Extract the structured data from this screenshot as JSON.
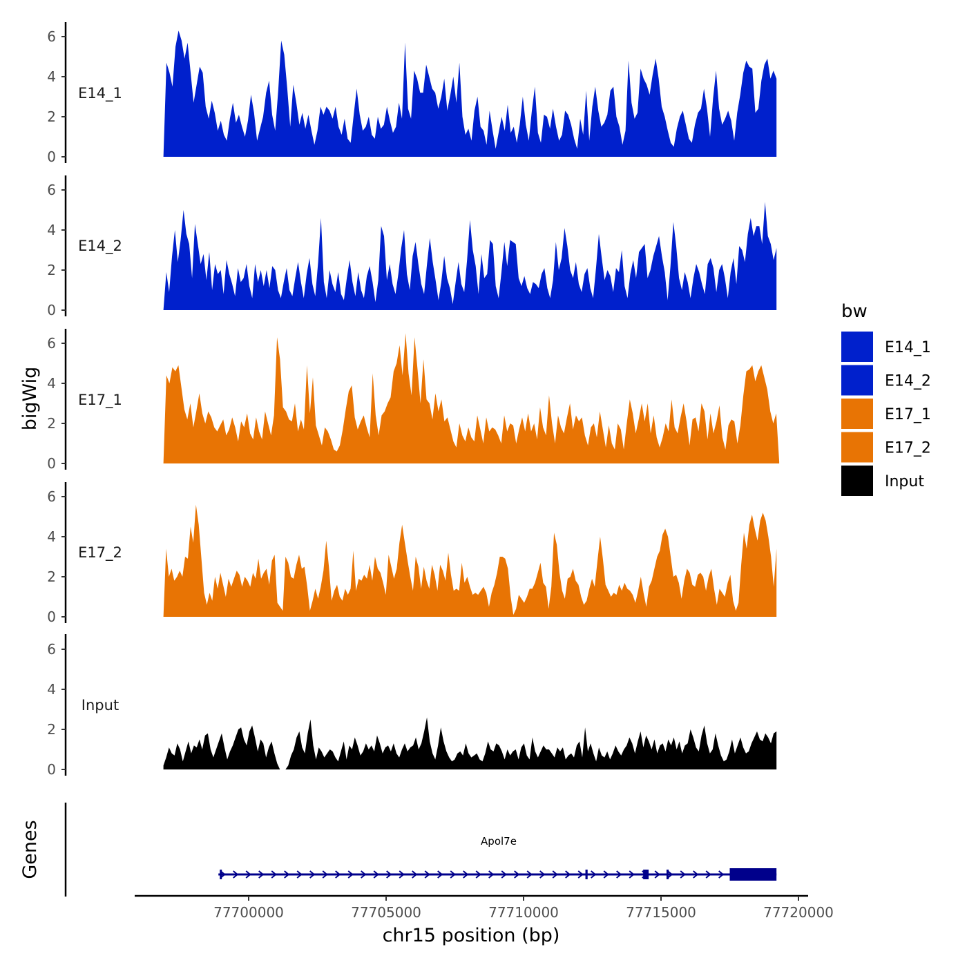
{
  "chart_data": {
    "type": "area",
    "ylabel": "bigWig",
    "xlabel": "chr15 position (bp)",
    "xlim": [
      77696700,
      77719300
    ],
    "ylim": [
      0,
      6.5
    ],
    "yticks": [
      0,
      2,
      4,
      6
    ],
    "xticks": [
      77700000,
      77705000,
      77710000,
      77715000,
      77720000
    ],
    "xtick_labels": [
      "77700000",
      "77705000",
      "77710000",
      "77715000",
      "77720000"
    ],
    "colors": {
      "E14_1": "#0020CC",
      "E14_2": "#0020CC",
      "E17_1": "#E87404",
      "E17_2": "#E87404",
      "Input": "#000000"
    },
    "legend": {
      "title": "bw",
      "entries": [
        "E14_1",
        "E14_2",
        "E17_1",
        "E17_2",
        "Input"
      ]
    },
    "series": [
      {
        "name": "E14_1",
        "x_start": 77696900,
        "x_end": 77719200,
        "values": [
          0.0,
          4.7,
          4.2,
          3.5,
          5.5,
          6.3,
          5.8,
          4.9,
          5.7,
          4.2,
          2.7,
          3.6,
          4.5,
          4.2,
          2.5,
          1.9,
          2.8,
          2.2,
          1.3,
          1.8,
          1.1,
          0.8,
          1.9,
          2.7,
          1.7,
          2.1,
          1.5,
          1.0,
          1.8,
          3.1,
          2.2,
          0.8,
          1.4,
          2.0,
          3.2,
          3.8,
          2.1,
          1.3,
          3.3,
          5.8,
          5.1,
          3.4,
          1.5,
          3.6,
          2.7,
          1.6,
          2.2,
          1.4,
          2.1,
          1.3,
          0.6,
          1.3,
          2.5,
          2.1,
          2.5,
          2.3,
          1.9,
          2.5,
          1.5,
          1.1,
          1.9,
          0.9,
          0.7,
          2.1,
          3.4,
          2.1,
          1.3,
          1.5,
          2.0,
          1.1,
          0.9,
          2.0,
          1.4,
          1.6,
          2.5,
          1.8,
          1.2,
          1.5,
          2.7,
          1.9,
          5.7,
          2.4,
          1.9,
          4.3,
          3.9,
          3.2,
          3.2,
          4.6,
          4.0,
          3.4,
          3.2,
          2.4,
          3.0,
          3.9,
          2.3,
          3.1,
          4.0,
          2.7,
          4.7,
          2.0,
          1.1,
          1.4,
          0.8,
          2.3,
          3.0,
          1.5,
          1.3,
          0.6,
          2.3,
          1.3,
          0.4,
          1.2,
          2.0,
          1.3,
          2.6,
          1.2,
          1.5,
          0.7,
          1.6,
          3.0,
          1.6,
          0.8,
          2.3,
          3.5,
          1.2,
          0.7,
          2.1,
          2.0,
          1.4,
          2.4,
          1.5,
          0.8,
          1.1,
          2.3,
          2.1,
          1.6,
          0.9,
          0.4,
          1.9,
          1.1,
          3.3,
          0.8,
          2.5,
          3.5,
          2.3,
          1.5,
          1.7,
          2.1,
          3.3,
          3.5,
          2.0,
          1.5,
          0.6,
          1.3,
          4.8,
          2.7,
          1.9,
          2.2,
          4.4,
          3.9,
          3.6,
          3.1,
          4.1,
          4.9,
          3.9,
          2.5,
          2.0,
          1.3,
          0.7,
          0.5,
          1.4,
          2.0,
          2.3,
          1.6,
          0.9,
          0.7,
          1.6,
          2.2,
          2.4,
          3.4,
          2.4,
          1.0,
          2.9,
          4.3,
          2.4,
          1.6,
          1.9,
          2.3,
          1.8,
          0.8,
          2.2,
          3.1,
          4.2,
          4.8,
          4.5,
          4.4,
          2.2,
          2.4,
          3.8,
          4.6,
          4.9,
          3.9,
          4.3,
          3.9
        ]
      },
      {
        "name": "E14_2",
        "x_start": 77696900,
        "x_end": 77719200,
        "values": [
          0.0,
          1.9,
          0.9,
          2.7,
          4.0,
          2.4,
          3.5,
          5.0,
          3.8,
          3.3,
          1.6,
          4.3,
          3.3,
          2.3,
          2.8,
          1.5,
          2.9,
          1.0,
          2.3,
          1.8,
          2.0,
          0.8,
          2.5,
          1.8,
          1.3,
          0.7,
          2.1,
          1.4,
          1.6,
          2.3,
          1.2,
          0.6,
          2.3,
          1.4,
          2.0,
          1.2,
          2.0,
          1.1,
          2.2,
          2.0,
          1.0,
          0.6,
          1.4,
          2.1,
          1.0,
          0.7,
          1.6,
          2.4,
          1.4,
          0.6,
          1.8,
          2.6,
          1.3,
          0.7,
          2.4,
          4.6,
          1.4,
          0.6,
          2.0,
          1.3,
          0.9,
          1.9,
          0.8,
          0.5,
          1.6,
          2.5,
          1.4,
          0.7,
          1.9,
          1.0,
          0.6,
          1.7,
          2.2,
          1.4,
          0.4,
          1.5,
          4.2,
          3.7,
          1.5,
          2.3,
          1.3,
          0.8,
          1.8,
          3.1,
          4.0,
          1.8,
          1.0,
          2.7,
          3.4,
          2.3,
          1.3,
          0.8,
          2.3,
          3.6,
          2.4,
          1.5,
          0.5,
          1.4,
          2.7,
          1.6,
          1.1,
          0.3,
          1.4,
          2.4,
          1.3,
          0.9,
          2.5,
          4.5,
          3.0,
          2.2,
          0.8,
          2.8,
          1.6,
          1.8,
          3.5,
          3.3,
          1.2,
          0.6,
          1.9,
          3.4,
          2.2,
          3.5,
          3.4,
          3.3,
          1.6,
          1.2,
          1.7,
          1.1,
          0.8,
          1.4,
          1.3,
          1.1,
          1.8,
          2.1,
          1.1,
          0.6,
          1.5,
          3.4,
          2.0,
          2.6,
          4.1,
          3.2,
          2.0,
          1.6,
          2.4,
          1.3,
          0.9,
          1.8,
          2.1,
          1.1,
          0.6,
          2.1,
          3.8,
          2.6,
          1.5,
          2.0,
          1.7,
          0.9,
          2.1,
          1.9,
          3.0,
          1.2,
          0.6,
          1.8,
          2.5,
          1.6,
          2.9,
          3.1,
          3.3,
          1.6,
          2.0,
          2.7,
          3.2,
          3.7,
          2.7,
          1.9,
          0.5,
          2.2,
          4.4,
          3.2,
          1.6,
          1.0,
          1.9,
          1.4,
          0.6,
          1.6,
          2.3,
          1.9,
          1.3,
          0.8,
          2.3,
          2.6,
          2.1,
          0.9,
          2.0,
          2.3,
          1.6,
          0.6,
          1.9,
          2.6,
          1.3,
          3.2,
          3.0,
          2.4,
          3.8,
          4.6,
          3.7,
          4.2,
          4.2,
          3.3,
          5.4,
          3.7,
          3.3,
          2.5,
          3.1
        ]
      },
      {
        "name": "E17_1",
        "x_start": 77696900,
        "x_end": 77719300,
        "values": [
          0.0,
          4.4,
          4.0,
          4.8,
          4.6,
          4.9,
          3.8,
          2.7,
          2.2,
          3.0,
          1.8,
          2.6,
          3.5,
          2.5,
          2.0,
          2.6,
          2.3,
          1.8,
          1.6,
          1.9,
          2.2,
          1.4,
          1.7,
          2.3,
          1.8,
          1.1,
          2.1,
          1.8,
          2.5,
          1.5,
          1.2,
          2.3,
          1.6,
          1.2,
          2.6,
          2.0,
          1.4,
          2.4,
          6.3,
          5.2,
          2.8,
          2.6,
          2.2,
          2.1,
          3.0,
          1.6,
          2.2,
          1.7,
          4.9,
          2.5,
          4.3,
          1.9,
          1.4,
          0.9,
          1.8,
          1.6,
          1.2,
          0.7,
          0.6,
          0.9,
          1.7,
          2.7,
          3.6,
          3.9,
          2.3,
          1.7,
          2.1,
          2.4,
          1.8,
          1.3,
          4.5,
          2.4,
          1.4,
          2.4,
          2.6,
          3.0,
          3.3,
          4.6,
          5.0,
          5.9,
          4.4,
          6.5,
          4.5,
          3.4,
          6.3,
          4.7,
          3.0,
          5.2,
          3.2,
          3.0,
          2.2,
          3.5,
          2.6,
          3.2,
          2.1,
          2.3,
          1.7,
          1.1,
          0.8,
          2.0,
          1.4,
          1.1,
          1.8,
          1.3,
          1.1,
          2.4,
          1.7,
          1.0,
          2.3,
          1.6,
          1.8,
          1.7,
          1.4,
          1.0,
          2.4,
          1.6,
          2.0,
          1.9,
          1.0,
          1.7,
          2.3,
          1.6,
          2.5,
          1.6,
          2.0,
          1.2,
          2.8,
          1.8,
          1.4,
          3.4,
          2.0,
          1.0,
          2.4,
          1.8,
          1.5,
          2.3,
          3.0,
          1.7,
          2.4,
          2.1,
          2.3,
          1.4,
          0.9,
          1.8,
          2.0,
          1.3,
          2.6,
          1.7,
          0.8,
          1.9,
          1.0,
          0.7,
          2.0,
          1.7,
          0.7,
          2.0,
          3.2,
          2.5,
          1.5,
          2.2,
          3.0,
          2.1,
          3.0,
          1.5,
          2.4,
          1.3,
          0.8,
          1.3,
          2.0,
          1.6,
          3.2,
          1.8,
          1.5,
          2.3,
          3.0,
          2.1,
          0.9,
          2.2,
          2.3,
          1.6,
          3.0,
          2.6,
          1.2,
          2.5,
          1.5,
          2.1,
          2.9,
          1.3,
          0.7,
          1.9,
          2.2,
          2.1,
          1.0,
          1.9,
          3.4,
          4.6,
          4.7,
          4.9,
          4.1,
          4.6,
          4.9,
          4.3,
          3.7,
          2.6,
          2.0,
          2.5,
          0.1
        ]
      },
      {
        "name": "E17_2",
        "x_start": 77696900,
        "x_end": 77719200,
        "values": [
          0.0,
          3.4,
          2.0,
          2.4,
          1.8,
          2.0,
          2.3,
          2.0,
          3.0,
          2.9,
          4.5,
          3.7,
          5.6,
          4.6,
          2.9,
          1.2,
          0.6,
          1.2,
          0.8,
          2.0,
          1.4,
          2.2,
          1.6,
          1.0,
          1.9,
          1.5,
          1.9,
          2.3,
          2.1,
          1.5,
          2.0,
          1.8,
          1.5,
          2.2,
          1.9,
          2.9,
          1.9,
          2.2,
          2.4,
          1.6,
          2.8,
          3.1,
          0.7,
          0.5,
          0.3,
          3.0,
          2.7,
          2.0,
          1.9,
          2.6,
          3.1,
          2.4,
          2.5,
          1.5,
          0.3,
          0.8,
          1.4,
          0.9,
          1.5,
          2.3,
          3.8,
          2.5,
          0.8,
          1.3,
          1.6,
          1.0,
          0.8,
          1.4,
          1.1,
          1.4,
          3.3,
          1.3,
          1.9,
          1.8,
          2.1,
          1.9,
          2.6,
          1.8,
          3.0,
          2.4,
          2.2,
          1.7,
          1.1,
          3.1,
          2.5,
          1.9,
          2.4,
          3.7,
          4.6,
          3.7,
          2.8,
          2.0,
          1.3,
          3.0,
          2.5,
          1.4,
          2.5,
          1.8,
          1.4,
          2.6,
          2.1,
          1.3,
          2.6,
          2.3,
          1.8,
          3.2,
          2.1,
          1.3,
          1.4,
          1.3,
          2.7,
          1.7,
          2.0,
          1.5,
          1.1,
          1.2,
          1.1,
          1.3,
          1.5,
          1.2,
          0.5,
          1.2,
          1.6,
          2.2,
          3.0,
          3.0,
          2.9,
          2.4,
          1.0,
          0.1,
          0.4,
          1.1,
          0.9,
          0.7,
          1.0,
          1.4,
          1.4,
          1.7,
          2.2,
          2.7,
          1.7,
          1.5,
          0.4,
          1.5,
          4.2,
          3.6,
          2.2,
          1.3,
          0.9,
          1.9,
          2.0,
          2.4,
          1.8,
          1.6,
          1.0,
          0.6,
          0.8,
          1.4,
          1.9,
          1.5,
          2.8,
          4.0,
          2.9,
          1.6,
          1.3,
          1.0,
          1.2,
          1.1,
          1.6,
          1.3,
          1.7,
          1.4,
          1.3,
          1.1,
          0.7,
          1.3,
          2.0,
          1.2,
          0.5,
          1.5,
          1.8,
          2.4,
          3.0,
          3.3,
          4.1,
          4.4,
          4.0,
          3.0,
          2.0,
          2.1,
          1.7,
          0.9,
          1.8,
          2.4,
          2.2,
          1.6,
          1.5,
          2.1,
          2.2,
          2.0,
          1.3,
          2.0,
          2.4,
          1.4,
          0.6,
          1.4,
          1.2,
          1.0,
          1.7,
          2.1,
          0.8,
          0.3,
          0.7,
          2.6,
          4.2,
          3.4,
          4.6,
          5.1,
          4.4,
          3.8,
          4.8,
          5.2,
          4.8,
          4.0,
          3.0,
          1.5,
          3.4
        ]
      },
      {
        "name": "Input",
        "x_start": 77696900,
        "x_end": 77719200,
        "values": [
          0.2,
          0.6,
          1.1,
          0.8,
          0.7,
          1.3,
          1.0,
          0.4,
          0.9,
          1.4,
          0.8,
          1.2,
          1.1,
          1.5,
          1.0,
          1.7,
          1.8,
          1.0,
          0.6,
          1.0,
          1.4,
          1.8,
          1.1,
          0.5,
          0.9,
          1.2,
          1.6,
          2.0,
          2.1,
          1.5,
          1.2,
          1.9,
          2.2,
          1.6,
          0.9,
          1.5,
          1.3,
          0.6,
          1.1,
          1.4,
          0.8,
          0.3,
          0.0,
          0.0,
          0.0,
          0.2,
          0.7,
          1.0,
          1.6,
          1.9,
          1.1,
          0.8,
          1.8,
          2.5,
          1.2,
          0.5,
          1.1,
          0.9,
          0.6,
          0.8,
          1.0,
          0.9,
          0.6,
          0.4,
          0.9,
          1.4,
          0.5,
          1.2,
          1.0,
          1.6,
          1.2,
          0.7,
          0.9,
          1.3,
          1.0,
          1.2,
          0.9,
          1.7,
          1.3,
          0.8,
          1.1,
          1.2,
          0.9,
          1.3,
          0.8,
          0.6,
          1.0,
          1.3,
          0.9,
          1.1,
          1.2,
          1.6,
          1.0,
          1.3,
          1.9,
          2.6,
          1.4,
          0.8,
          0.5,
          1.2,
          2.1,
          1.4,
          0.9,
          0.6,
          0.4,
          0.5,
          0.8,
          0.9,
          0.7,
          1.3,
          0.8,
          0.6,
          0.7,
          0.8,
          0.5,
          0.4,
          0.8,
          1.4,
          1.0,
          0.9,
          1.3,
          1.2,
          0.9,
          0.5,
          1.0,
          0.7,
          0.9,
          1.0,
          0.5,
          1.1,
          1.3,
          0.7,
          0.5,
          1.6,
          0.9,
          0.6,
          0.9,
          1.2,
          1.0,
          1.0,
          0.8,
          0.6,
          1.1,
          0.9,
          1.1,
          0.5,
          0.7,
          0.8,
          0.6,
          1.2,
          1.4,
          0.6,
          2.1,
          0.9,
          1.3,
          0.8,
          0.4,
          1.1,
          0.7,
          0.6,
          0.9,
          0.5,
          0.8,
          1.2,
          0.9,
          0.7,
          1.0,
          1.2,
          1.6,
          1.3,
          0.8,
          1.4,
          1.9,
          1.1,
          1.7,
          1.4,
          1.0,
          1.5,
          0.8,
          1.2,
          1.3,
          0.9,
          1.5,
          1.2,
          1.6,
          1.0,
          1.4,
          0.8,
          1.2,
          1.3,
          2.0,
          1.6,
          1.1,
          0.9,
          1.7,
          2.2,
          1.3,
          0.8,
          1.0,
          1.8,
          1.2,
          0.7,
          0.4,
          0.5,
          0.9,
          1.5,
          0.8,
          1.2,
          1.6,
          1.1,
          0.8,
          0.9,
          1.3,
          1.6,
          1.9,
          1.5,
          1.4,
          1.8,
          1.6,
          1.3,
          1.8,
          1.9
        ]
      }
    ],
    "gene_track": {
      "title": "Genes",
      "gene_name": "Apol7e",
      "color": "#00008B",
      "strand": "+",
      "intron_start": 77698900,
      "intron_end": 77719200,
      "exons": [
        [
          77698950,
          77699020
        ],
        [
          77712250,
          77712330
        ],
        [
          77714350,
          77714550
        ],
        [
          77715200,
          77715280
        ],
        [
          77717500,
          77719200
        ]
      ]
    }
  }
}
